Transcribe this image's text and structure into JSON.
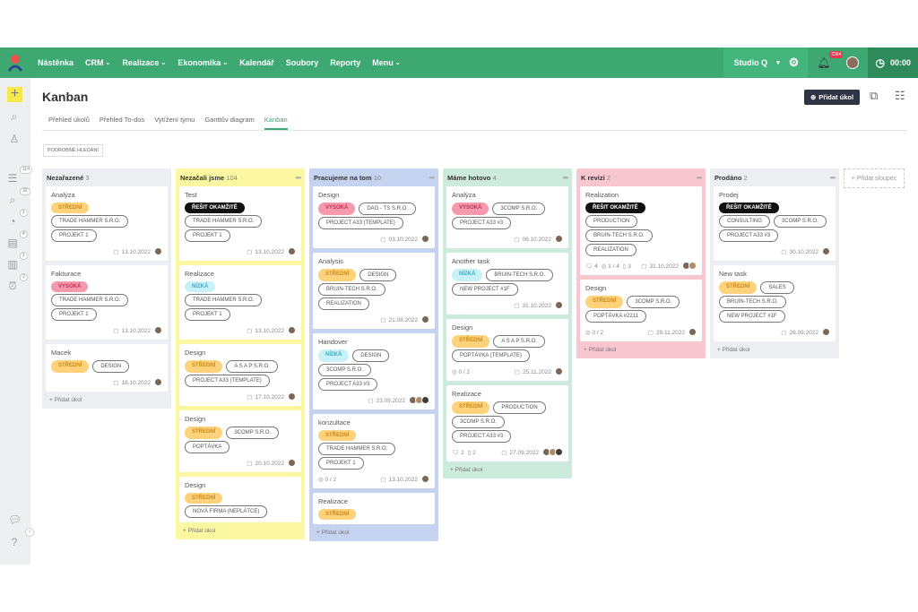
{
  "nav": {
    "items": [
      {
        "label": "Nástěnka",
        "dropdown": false
      },
      {
        "label": "CRM",
        "dropdown": true
      },
      {
        "label": "Realizace",
        "dropdown": true
      },
      {
        "label": "Ekonomika",
        "dropdown": true
      },
      {
        "label": "Kalendář",
        "dropdown": false
      },
      {
        "label": "Soubory",
        "dropdown": false
      },
      {
        "label": "Reporty",
        "dropdown": false
      },
      {
        "label": "Menu",
        "dropdown": true
      }
    ],
    "workspace": "Studio Q",
    "notification_count": "2364",
    "timer": "00:00",
    "brand_color": "#3ea873"
  },
  "sidebar": {
    "badges": [
      "114",
      "32",
      "1",
      "4",
      "1",
      "2"
    ]
  },
  "page": {
    "title": "Kanban",
    "tabs": [
      "Přehled úkolů",
      "Přehled To-dos",
      "Vytížení týmu",
      "Ganttův diagram",
      "Kanban"
    ],
    "active_tab": 4,
    "add_task": "Přidat úkol",
    "detailed_search": "PODROBNÉ HLEDÁNÍ",
    "add_card": "Přidat úkol",
    "add_column": "+ Přidat sloupec"
  },
  "priority_colors": {
    "STŘEDNÍ": {
      "bg": "#fdd27a",
      "fg": "#c98a1a"
    },
    "VYSOKÁ": {
      "bg": "#f59aae",
      "fg": "#c0324f"
    },
    "NÍZKÁ": {
      "bg": "#c8f1f8",
      "fg": "#3aa9c0"
    },
    "ŘEŠIT OKAMŽITĚ": {
      "bg": "#111111",
      "fg": "#ffffff"
    }
  },
  "columns": [
    {
      "name": "Nezařazené",
      "count": "3",
      "color": "#eceef1",
      "cards": [
        {
          "title": "Analýza",
          "priority": "STŘEDNÍ",
          "labels": [
            "TRADE HAMMER S.R.O.",
            "PROJEKT 1"
          ],
          "date": "13.10.2022",
          "avatars": 1
        },
        {
          "title": "Fakturace",
          "priority": "VYSOKÁ",
          "labels": [
            "TRADE HAMMER S.R.O.",
            "PROJEKT 1"
          ],
          "date": "13.10.2022",
          "avatars": 1
        },
        {
          "title": "Macek",
          "priority": "STŘEDNÍ",
          "labels": [
            "DESIGN"
          ],
          "date": "18.10.2022",
          "avatars": 1
        }
      ]
    },
    {
      "name": "Nezačali jsme",
      "count": "104",
      "color": "#fbf7a0",
      "clip": true,
      "cards": [
        {
          "title": "Test",
          "priority": "ŘEŠIT OKAMŽITĚ",
          "labels": [
            "TRADE HAMMER S.R.O.",
            "PROJEKT 1"
          ],
          "date": "13.10.2022",
          "avatars": 1
        },
        {
          "title": "Realizace",
          "priority": "NÍZKÁ",
          "labels": [
            "TRADE HAMMER S.R.O.",
            "PROJEKT 1"
          ],
          "date": "13.10.2022",
          "avatars": 1
        },
        {
          "title": "Design",
          "priority": "STŘEDNÍ",
          "labels": [
            "A S A P S.R.O.",
            "PROJECT A33 (TEMPLATE)"
          ],
          "date": "17.10.2022",
          "avatars": 1
        },
        {
          "title": "Design",
          "priority": "STŘEDNÍ",
          "labels": [
            "3COMP S.R.O.",
            "POPTÁVKA"
          ],
          "date": "20.10.2022",
          "avatars": 1
        },
        {
          "title": "Design",
          "priority": "STŘEDNÍ",
          "labels": [
            "NOVÁ FIRMA (NEPLÁTCE)"
          ]
        }
      ]
    },
    {
      "name": "Pracujeme na tom",
      "count": "10",
      "color": "#c5d3f1",
      "cards": [
        {
          "title": "Design",
          "priority": "VYSOKÁ",
          "labels": [
            "DAG - TS S.R.O.",
            "PROJECT A33 (TEMPLATE)"
          ],
          "date": "03.10.2022",
          "avatars": 1
        },
        {
          "title": "Analysis",
          "priority": "STŘEDNÍ",
          "labels": [
            "DESIGN",
            "BRUIN-TECH S.R.O.",
            "REALIZATION"
          ],
          "date": "21.08.2022",
          "avatars": 1
        },
        {
          "title": "Handover",
          "priority": "NÍZKÁ",
          "labels": [
            "DESIGN",
            "3COMP S.R.O.",
            "PROJECT A33 #3"
          ],
          "date": "23.09.2022",
          "avatars": 3
        },
        {
          "title": "konzultace",
          "priority": "STŘEDNÍ",
          "labels": [
            "TRADE HAMMER S.R.O.",
            "PROJEKT 1"
          ],
          "checklist": "0 / 2",
          "date": "13.10.2022",
          "avatars": 1
        },
        {
          "title": "Realizace",
          "priority": "STŘEDNÍ",
          "labels": []
        }
      ]
    },
    {
      "name": "Máme hotovo",
      "count": "4",
      "color": "#cdebdc",
      "cards": [
        {
          "title": "Analýza",
          "priority": "VYSOKÁ",
          "labels": [
            "3COMP S.R.O.",
            "PROJECT A33 #3"
          ],
          "date": "06.10.2022",
          "avatars": 1
        },
        {
          "title": "Another task",
          "priority": "NÍZKÁ",
          "labels": [
            "BRUIN-TECH S.R.O.",
            "NEW PROJECT #1F"
          ],
          "date": "31.10.2022",
          "avatars": 1
        },
        {
          "title": "Design",
          "priority": "STŘEDNÍ",
          "labels": [
            "A S A P S.R.O.",
            "POPTÁVKA (TEMPLATE)"
          ],
          "checklist": "0 / 2",
          "date": "25.11.2022",
          "avatars": 1
        },
        {
          "title": "Realizace",
          "priority": "STŘEDNÍ",
          "labels": [
            "PRODUCTION",
            "3COMP S.R.O.",
            "PROJECT A33 #3"
          ],
          "comments": "2",
          "attachments": "2",
          "date": "27.09.2022",
          "avatars": 3
        }
      ]
    },
    {
      "name": "K revizi",
      "count": "2",
      "color": "#f7c6cf",
      "cards": [
        {
          "title": "Realization",
          "priority": "ŘEŠIT OKAMŽITĚ",
          "labels": [
            "PRODUCTION",
            "BRUIN-TECH S.R.O.",
            "REALIZATION"
          ],
          "comments": "4",
          "checklist": "1 / 4",
          "attachments": "3",
          "date": "31.10.2022",
          "avatars": 2
        },
        {
          "title": "Design",
          "priority": "STŘEDNÍ",
          "labels": [
            "3COMP S.R.O.",
            "POPTÁVKA #2211"
          ],
          "checklist": "0 / 2",
          "date": "29.11.2022",
          "avatars": 1
        }
      ]
    },
    {
      "name": "Prodáno",
      "count": "2",
      "color": "#eceef1",
      "cards": [
        {
          "title": "Prodej",
          "priority": "ŘEŠIT OKAMŽITĚ",
          "labels": [
            "CONSULTING",
            "3COMP S.R.O.",
            "PROJECT A33 #3"
          ],
          "date": "30.10.2022",
          "avatars": 1
        },
        {
          "title": "New task",
          "priority": "STŘEDNÍ",
          "labels": [
            "SALES",
            "BRUIN-TECH S.R.O.",
            "NEW PROJECT #1F"
          ],
          "date": "26.09.2022",
          "avatars": 1
        }
      ]
    }
  ]
}
